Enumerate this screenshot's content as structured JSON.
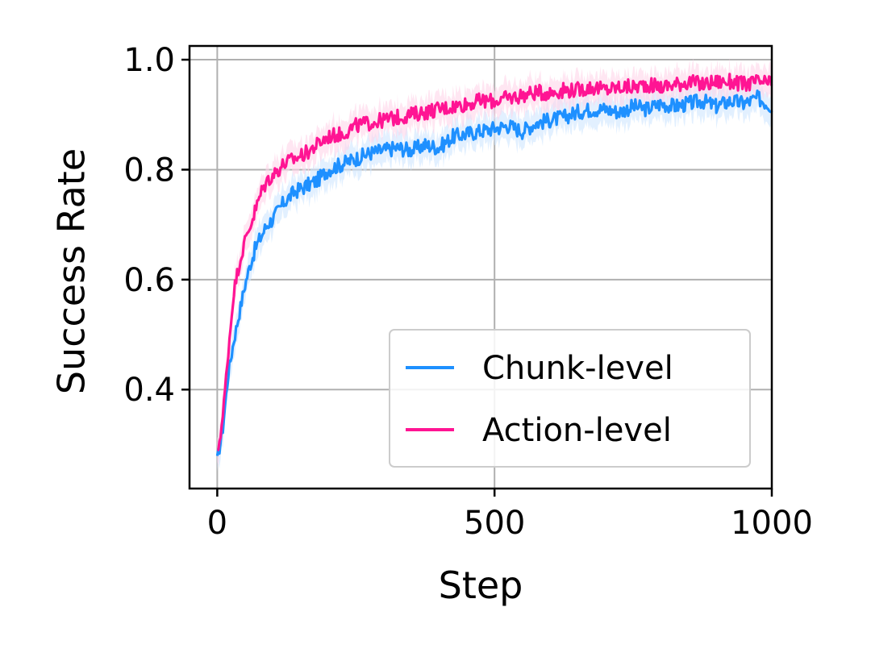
{
  "chart_data": {
    "type": "line",
    "xlabel": "Step",
    "ylabel": "Success Rate",
    "xlim": [
      -50,
      1000
    ],
    "ylim": [
      0.22,
      1.025
    ],
    "xticks": [
      0,
      500,
      1000
    ],
    "xtick_labels": [
      "0",
      "500",
      "1000"
    ],
    "yticks": [
      0.4,
      0.6,
      0.8,
      1.0
    ],
    "ytick_labels": [
      "0.4",
      "0.6",
      "0.8",
      "1.0"
    ],
    "grid": true,
    "legend": "lower-right",
    "series": [
      {
        "name": "Chunk-level",
        "color": "#1e90ff",
        "band_color": "#cfe6ff",
        "x": [
          0,
          10,
          20,
          30,
          40,
          50,
          60,
          70,
          80,
          90,
          100,
          120,
          140,
          160,
          180,
          200,
          225,
          250,
          275,
          300,
          325,
          350,
          375,
          400,
          425,
          450,
          475,
          500,
          525,
          550,
          575,
          600,
          625,
          650,
          675,
          700,
          725,
          750,
          775,
          800,
          825,
          850,
          875,
          900,
          925,
          950,
          975,
          1000
        ],
        "y": [
          0.27,
          0.33,
          0.43,
          0.49,
          0.54,
          0.59,
          0.63,
          0.66,
          0.68,
          0.7,
          0.71,
          0.74,
          0.76,
          0.77,
          0.78,
          0.8,
          0.81,
          0.82,
          0.83,
          0.835,
          0.84,
          0.835,
          0.845,
          0.84,
          0.86,
          0.865,
          0.87,
          0.875,
          0.88,
          0.87,
          0.885,
          0.89,
          0.895,
          0.905,
          0.91,
          0.91,
          0.905,
          0.915,
          0.91,
          0.92,
          0.915,
          0.92,
          0.925,
          0.915,
          0.925,
          0.92,
          0.93,
          0.915
        ]
      },
      {
        "name": "Action-level",
        "color": "#ff1493",
        "band_color": "#ffd6ea",
        "x": [
          0,
          10,
          20,
          30,
          40,
          50,
          60,
          70,
          80,
          90,
          100,
          120,
          140,
          160,
          180,
          200,
          225,
          250,
          275,
          300,
          325,
          350,
          375,
          400,
          425,
          450,
          475,
          500,
          525,
          550,
          575,
          600,
          625,
          650,
          675,
          700,
          725,
          750,
          775,
          800,
          825,
          850,
          875,
          900,
          925,
          950,
          975,
          1000
        ],
        "y": [
          0.28,
          0.35,
          0.47,
          0.58,
          0.63,
          0.67,
          0.7,
          0.73,
          0.76,
          0.78,
          0.79,
          0.81,
          0.82,
          0.83,
          0.845,
          0.86,
          0.865,
          0.88,
          0.885,
          0.89,
          0.895,
          0.9,
          0.905,
          0.91,
          0.915,
          0.92,
          0.925,
          0.925,
          0.93,
          0.935,
          0.94,
          0.94,
          0.945,
          0.945,
          0.95,
          0.945,
          0.95,
          0.95,
          0.955,
          0.95,
          0.955,
          0.96,
          0.955,
          0.96,
          0.96,
          0.955,
          0.96,
          0.955
        ]
      }
    ]
  }
}
